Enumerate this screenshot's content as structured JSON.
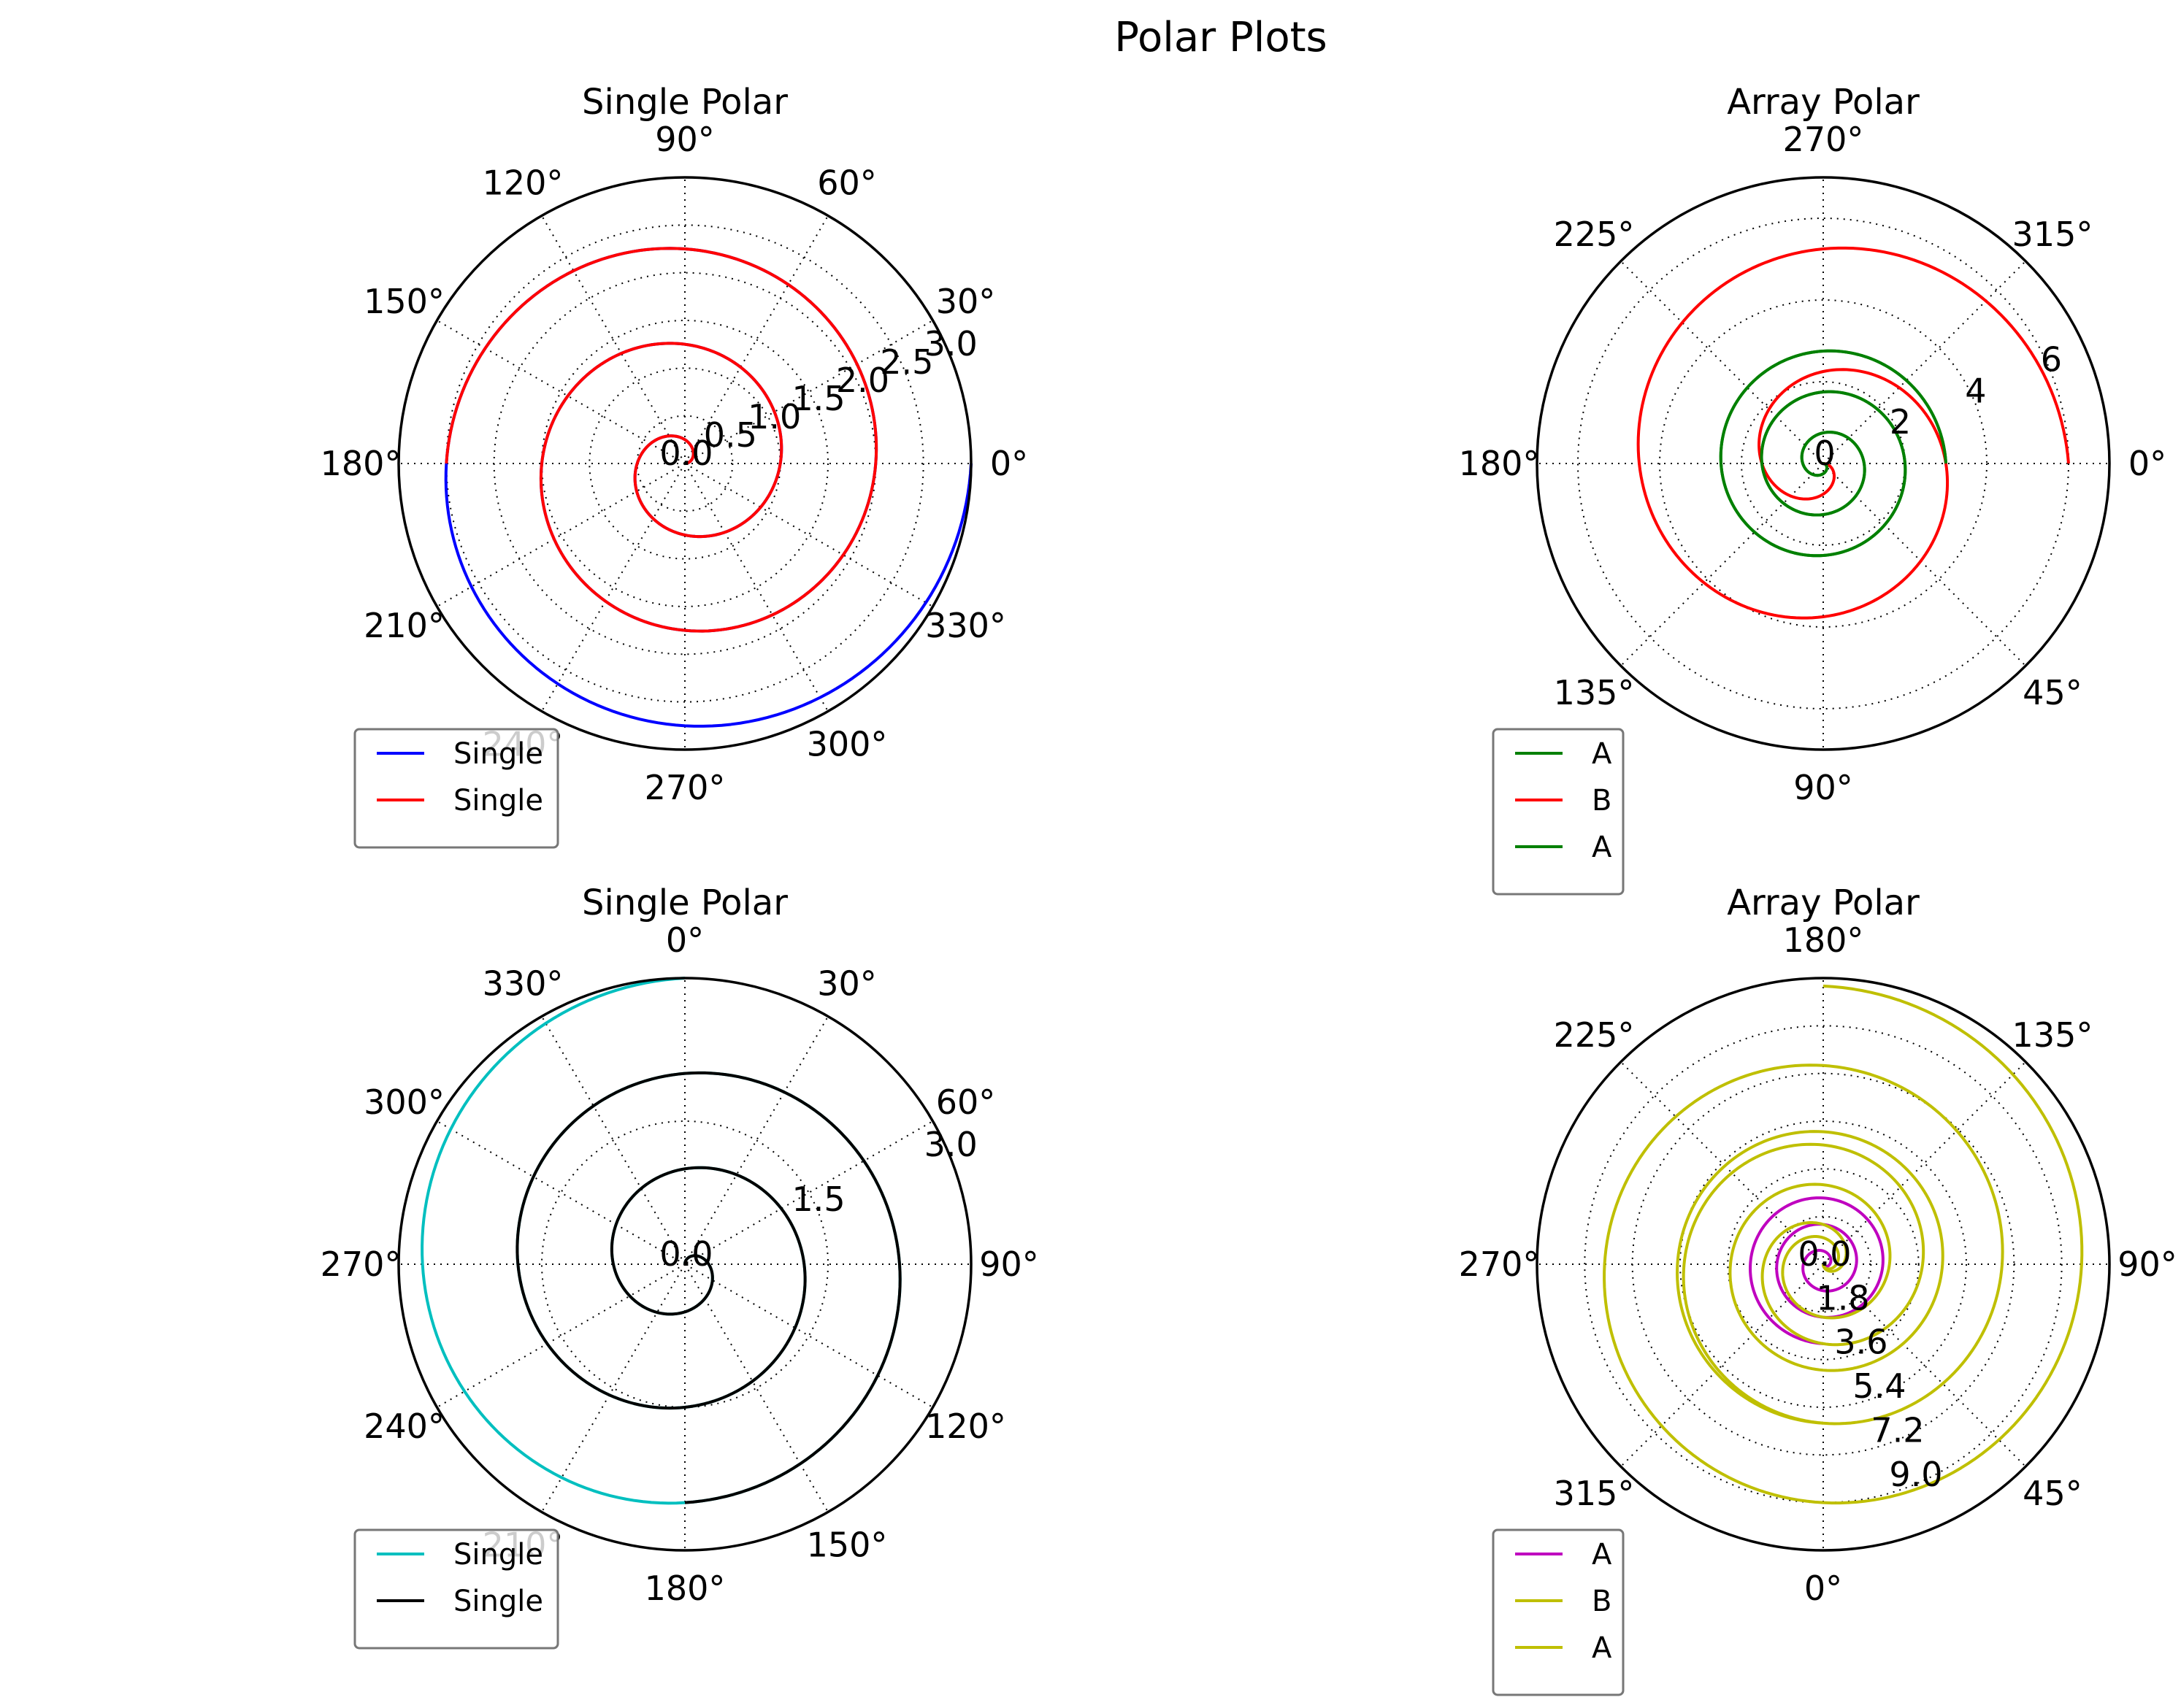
{
  "figure": {
    "title": "Polar Plots"
  },
  "chart_data": [
    {
      "type": "line",
      "projection": "polar",
      "title": "Single Polar",
      "theta_zero_location": "E",
      "theta_direction": 1,
      "angle_tick_labels": [
        "0°",
        "30°",
        "60°",
        "90°",
        "120°",
        "150°",
        "180°",
        "210°",
        "240°",
        "270°",
        "300°",
        "330°"
      ],
      "rlim": [
        0,
        3.0
      ],
      "radial_ticks": [
        0.0,
        0.5,
        1.0,
        1.5,
        2.0,
        2.5,
        3.0
      ],
      "radial_tick_labels": [
        "0.0",
        "0.5",
        "1.0",
        "1.5",
        "2.0",
        "2.5",
        "3.0"
      ],
      "radial_label_angle_deg": 22.5,
      "grid": true,
      "legend_loc": "lower left",
      "series": [
        {
          "name": "Single",
          "color": "#0000ff",
          "function": "r = theta/(2*pi)",
          "theta_start_deg": 0,
          "theta_end_deg": 1080,
          "r_start": 0.0,
          "r_end": 3.0
        },
        {
          "name": "Single",
          "color": "#ff0000",
          "function": "r = theta/(2*pi)",
          "theta_start_deg": 0,
          "theta_end_deg": 900,
          "r_start": 0.0,
          "r_end": 2.5
        }
      ]
    },
    {
      "type": "line",
      "projection": "polar",
      "title": "Array Polar",
      "theta_zero_location": "E",
      "theta_direction": -1,
      "angle_tick_labels": [
        "0°",
        "45°",
        "90°",
        "135°",
        "180°",
        "225°",
        "270°",
        "315°"
      ],
      "rlim": [
        0,
        7
      ],
      "radial_ticks": [
        0,
        2,
        4,
        6
      ],
      "radial_tick_labels": [
        "0",
        "2",
        "4",
        "6"
      ],
      "radial_label_angle_deg": 22.5,
      "grid": true,
      "legend_loc": "lower left",
      "series": [
        {
          "name": "A",
          "color": "#008000",
          "function": "r = theta/(2*pi)",
          "theta_start_deg": 0,
          "theta_end_deg": 1080,
          "r_start": 0,
          "r_end": 3.0
        },
        {
          "name": "B",
          "color": "#ff0000",
          "function": "r = 3*theta/(2*pi)",
          "theta_start_deg": 0,
          "theta_end_deg": 720,
          "r_start": 0,
          "r_end": 6.0
        },
        {
          "name": "A",
          "color": "#008000",
          "function": "r = theta/(2*pi)",
          "theta_start_deg": 0,
          "theta_end_deg": 1080,
          "r_start": 0,
          "r_end": 3.0
        }
      ]
    },
    {
      "type": "line",
      "projection": "polar",
      "title": "Single Polar",
      "theta_zero_location": "N",
      "theta_direction": -1,
      "angle_tick_labels": [
        "0°",
        "30°",
        "60°",
        "90°",
        "120°",
        "150°",
        "180°",
        "210°",
        "240°",
        "270°",
        "300°",
        "330°"
      ],
      "rlim": [
        0,
        3.0
      ],
      "radial_ticks": [
        0.0,
        1.5,
        3.0
      ],
      "radial_tick_labels": [
        "0.0",
        "1.5",
        "3.0"
      ],
      "radial_label_angle_deg": 22.5,
      "grid": true,
      "legend_loc": "lower left",
      "series": [
        {
          "name": "Single",
          "color": "#00bfbf",
          "function": "r = theta/(2*pi)",
          "theta_start_deg": 0,
          "theta_end_deg": 1080,
          "r_start": 0.0,
          "r_end": 3.0
        },
        {
          "name": "Single",
          "color": "#000000",
          "function": "r = theta/(2*pi)",
          "theta_start_deg": 0,
          "theta_end_deg": 900,
          "r_start": 0.0,
          "r_end": 2.5
        }
      ]
    },
    {
      "type": "line",
      "projection": "polar",
      "title": "Array Polar",
      "theta_zero_location": "S",
      "theta_direction": 1,
      "angle_tick_labels": [
        "0°",
        "45°",
        "90°",
        "135°",
        "180°",
        "225°",
        "270°",
        "315°"
      ],
      "rlim": [
        0,
        10.8
      ],
      "radial_ticks": [
        0.0,
        1.8,
        3.6,
        5.4,
        7.2,
        9.0
      ],
      "radial_tick_labels": [
        "0.0",
        "1.8",
        "3.6",
        "5.4",
        "7.2",
        "9.0"
      ],
      "radial_label_angle_deg": -67.5,
      "grid": true,
      "legend_loc": "lower left",
      "series": [
        {
          "name": "A",
          "color": "#bf00bf",
          "function": "r = theta/(2*pi)",
          "theta_start_deg": 0,
          "theta_end_deg": 1080,
          "r_start": 0.0,
          "r_end": 3.0
        },
        {
          "name": "B",
          "color": "#bfbf00",
          "function": "r = 2*theta/(2*pi)",
          "theta_start_deg": 0,
          "theta_end_deg": 1080,
          "r_start": 0.0,
          "r_end": 6.0
        },
        {
          "name": "A",
          "color": "#bfbf00",
          "function": "r = 3*theta/(2*pi)",
          "theta_start_deg": 0,
          "theta_end_deg": 1260,
          "r_start": 0.0,
          "r_end": 10.5
        }
      ]
    }
  ]
}
